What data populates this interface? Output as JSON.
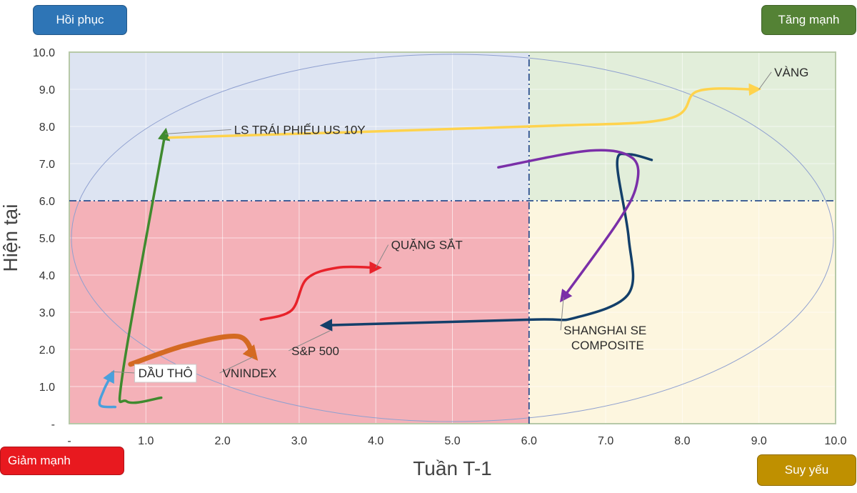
{
  "chart_data": {
    "type": "line",
    "xlabel": "Tuần T-1",
    "ylabel": "Hiện tại",
    "xlim": [
      0,
      10
    ],
    "ylim": [
      0,
      10
    ],
    "x_ticks": [
      "-",
      "1.0",
      "2.0",
      "3.0",
      "4.0",
      "5.0",
      "6.0",
      "7.0",
      "8.0",
      "9.0",
      "10.0"
    ],
    "y_ticks": [
      "-",
      "1.0",
      "2.0",
      "3.0",
      "4.0",
      "5.0",
      "6.0",
      "7.0",
      "8.0",
      "9.0",
      "10.0"
    ],
    "grid": true,
    "quadrant_split": [
      6.0,
      6.0
    ],
    "quadrants": {
      "top_left": {
        "label": "Hồi phục",
        "color": "#2e75b6",
        "fill": "#dde4f2"
      },
      "top_right": {
        "label": "Tăng mạnh",
        "color": "#548235",
        "fill": "#e2eeda"
      },
      "bottom_left": {
        "label": "Giảm mạnh",
        "color": "#e8191f",
        "fill": "#f4b1b8"
      },
      "bottom_right": {
        "label": "Suy yếu",
        "color": "#bf9000",
        "fill": "#fdf6df"
      }
    },
    "series": [
      {
        "name": "LS TRÁI PHIẾU US 10Y",
        "color": "#3f8a2e",
        "points": [
          [
            1.2,
            0.7
          ],
          [
            0.75,
            0.6
          ],
          [
            0.7,
            1.4
          ],
          [
            1.25,
            7.8
          ]
        ]
      },
      {
        "name": "VÀNG",
        "color": "#ffd34d",
        "points": [
          [
            1.3,
            7.7
          ],
          [
            6.0,
            8.0
          ],
          [
            7.8,
            8.2
          ],
          [
            8.2,
            8.95
          ],
          [
            8.95,
            9.0
          ]
        ]
      },
      {
        "name": "QUẶNG SẮT",
        "color": "#e8222a",
        "points": [
          [
            2.5,
            2.8
          ],
          [
            2.9,
            3.05
          ],
          [
            3.1,
            3.9
          ],
          [
            3.5,
            4.2
          ],
          [
            4.0,
            4.2
          ]
        ]
      },
      {
        "name": "VNINDEX",
        "color": "#d46a22",
        "points": [
          [
            0.8,
            1.6
          ],
          [
            1.5,
            2.1
          ],
          [
            2.2,
            2.35
          ],
          [
            2.4,
            1.85
          ]
        ]
      },
      {
        "name": "DẦU THÔ",
        "color": "#4aa0dc",
        "points": [
          [
            0.6,
            0.45
          ],
          [
            0.4,
            0.5
          ],
          [
            0.45,
            0.9
          ],
          [
            0.55,
            1.3
          ]
        ]
      },
      {
        "name": "S&P 500",
        "color": "#133f6a",
        "points": [
          [
            7.6,
            7.1
          ],
          [
            7.3,
            7.25
          ],
          [
            7.15,
            7.0
          ],
          [
            7.3,
            5.0
          ],
          [
            7.3,
            3.5
          ],
          [
            6.6,
            2.85
          ],
          [
            6.0,
            2.8
          ],
          [
            3.35,
            2.65
          ]
        ]
      },
      {
        "name": "SHANGHAI SE COMPOSITE",
        "color": "#7a2fa8",
        "points": [
          [
            5.6,
            6.9
          ],
          [
            6.8,
            7.35
          ],
          [
            7.35,
            7.15
          ],
          [
            7.4,
            6.4
          ],
          [
            7.15,
            5.4
          ],
          [
            6.45,
            3.4
          ]
        ]
      }
    ],
    "labels": [
      {
        "text": "LS TRÁI PHIẾU US 10Y",
        "at": [
          2.15,
          7.8
        ],
        "target": [
          1.25,
          7.8
        ]
      },
      {
        "text": "VÀNG",
        "at": [
          9.2,
          9.35
        ],
        "target": [
          9.0,
          9.0
        ]
      },
      {
        "text": "QUẶNG SẮT",
        "at": [
          4.2,
          4.7
        ],
        "target": [
          4.0,
          4.2
        ]
      },
      {
        "text": "VNINDEX",
        "at": [
          2.0,
          1.25
        ],
        "target": [
          2.4,
          1.8
        ]
      },
      {
        "text": "DẦU THÔ",
        "at": [
          0.9,
          1.25
        ],
        "target": [
          0.55,
          1.4
        ],
        "boxed": true
      },
      {
        "text": "S&P 500",
        "at": [
          2.9,
          1.85
        ],
        "target": [
          3.4,
          2.5
        ]
      },
      {
        "text": "SHANGHAI SE",
        "at": [
          6.45,
          2.4
        ],
        "target": [
          6.45,
          3.4
        ]
      },
      {
        "text": "COMPOSITE",
        "at": [
          6.55,
          2.0
        ]
      }
    ]
  }
}
